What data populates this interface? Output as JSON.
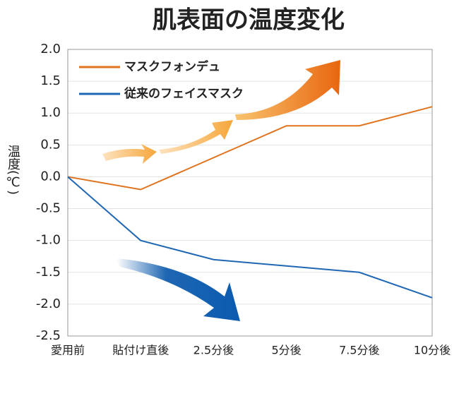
{
  "chart_data": {
    "type": "line",
    "title": "肌表面の温度変化",
    "y_label": "温度(℃)",
    "categories": [
      "愛用前",
      "貼付け直後",
      "2.5分後",
      "5分後",
      "7.5分後",
      "10分後"
    ],
    "series": [
      {
        "name": "マスクフォンデュ",
        "color": "#e0731e",
        "values": [
          0,
          -0.2,
          0.3,
          0.8,
          0.8,
          1.1
        ]
      },
      {
        "name": "従来のフェイスマスク",
        "color": "#1f67b3",
        "values": [
          0,
          -1.0,
          -1.3,
          -1.4,
          -1.5,
          -1.9
        ]
      }
    ],
    "ylim": [
      -2.5,
      2.0
    ],
    "yticks": [
      {
        "value": 2,
        "label": "2.0"
      },
      1.5,
      {
        "value": 1,
        "label": "1.0"
      },
      0.5,
      {
        "value": 0,
        "label": "0.0"
      },
      -0.5,
      {
        "value": -1,
        "label": "-1.0"
      },
      -1.5,
      {
        "value": -2,
        "label": "-2.0"
      },
      -2.5
    ],
    "grid": true,
    "legend": "upper left"
  }
}
